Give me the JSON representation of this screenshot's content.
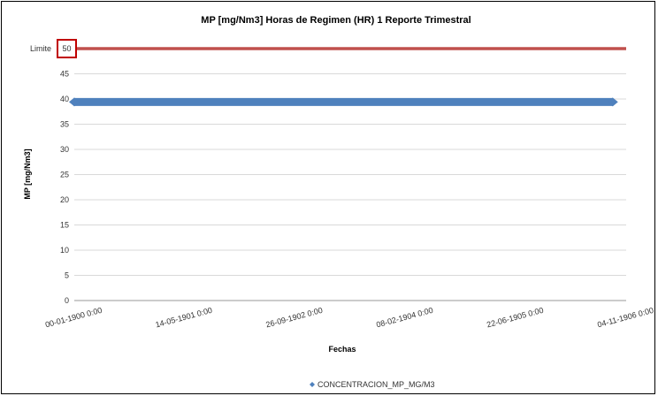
{
  "chart_data": {
    "type": "line",
    "title": "MP [mg/Nm3] Horas de Regimen (HR) 1 Reporte Trimestral",
    "xlabel": "Fechas",
    "ylabel": "MP [mg/Nm3]",
    "ylim": [
      0,
      50
    ],
    "y_ticks": [
      "0",
      "5",
      "10",
      "15",
      "20",
      "25",
      "30",
      "35",
      "40",
      "45",
      "50"
    ],
    "x_ticks": [
      "00-01-1900 0:00",
      "14-05-1901 0:00",
      "26-09-1902 0:00",
      "08-02-1904 0:00",
      "22-06-1905 0:00",
      "04-11-1906 0:00"
    ],
    "limit": {
      "label": "Limite",
      "value": 50,
      "value_label": "50",
      "color": "#c0504d",
      "box_color": "#c00000"
    },
    "series": [
      {
        "name": "CONCENTRACION_MP_MG/M3",
        "color": "#4f81bd",
        "x": [
          "00-01-1900 0:00",
          "04-09-1906 0:00"
        ],
        "values": [
          39.4,
          39.4
        ]
      }
    ],
    "grid": true,
    "legend_position": "bottom"
  }
}
